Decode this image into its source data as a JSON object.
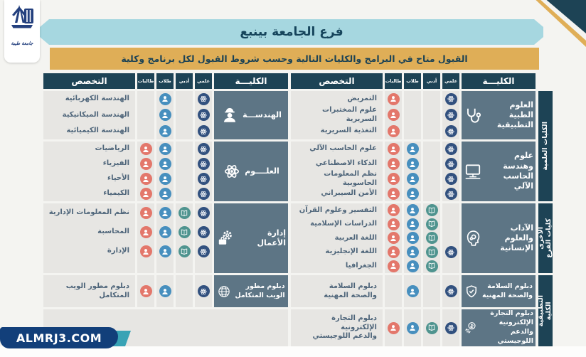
{
  "page": {
    "title": "فرع الجامعة بينبع",
    "subtitle": "القبول متاح في البرامج والكليات التالية وحسب شروط القبول لكل برنامج وكلية",
    "watermark": "ALMRJ3.COM",
    "logo_text": "جامعة طيبة"
  },
  "colors": {
    "header_navy": "#1d4355",
    "college_slate": "#5d7585",
    "cell_gray": "#e7e6e3",
    "banner_blue": "#a6d7e0",
    "banner_gold": "#dfae57",
    "sci": "#32517f",
    "lit": "#4f948f",
    "male": "#478fbe",
    "female": "#e3776b",
    "badge_blue": "#123f7a"
  },
  "header": {
    "college": "الكليـــة",
    "sci": "علمي",
    "lit": "أدبي",
    "male": "طلاب",
    "female": "طالبات",
    "spec": "التخصص"
  },
  "sidebar": [
    {
      "label": "الكليات العلمية"
    },
    {
      "label": "كليات الفرع\nالأخرى"
    },
    {
      "label": "الكلية\nالتطبيقية"
    }
  ],
  "halves": {
    "right": {
      "colleges": [
        {
          "name": "العلوم الطبية\nالتطبيقية",
          "icon": "stethoscope",
          "specs": [
            {
              "name": "التمريض",
              "tracks": [
                "sci",
                "female"
              ]
            },
            {
              "name": "علوم المختبرات السريرية",
              "tracks": [
                "sci",
                "female"
              ]
            },
            {
              "name": "التغذية السريرية",
              "tracks": [
                "sci",
                "female"
              ]
            }
          ]
        },
        {
          "name": "علوم وهندسة\nالحاسب الآلي",
          "icon": "computer",
          "specs": [
            {
              "name": "علوم الحاسب الآلي",
              "tracks": [
                "sci",
                "male",
                "female"
              ]
            },
            {
              "name": "الذكاء الاصطناعي",
              "tracks": [
                "sci",
                "male",
                "female"
              ]
            },
            {
              "name": "نظم المعلومات الحاسوبية",
              "tracks": [
                "sci",
                "male",
                "female"
              ]
            },
            {
              "name": "الأمن السيبراني",
              "tracks": [
                "sci",
                "male",
                "female"
              ]
            }
          ]
        },
        {
          "name": "الآداب والعلوم\nالإنسانية",
          "icon": "head",
          "specs": [
            {
              "name": "التفسير وعلوم القرآن",
              "tracks": [
                "lit",
                "male",
                "female"
              ]
            },
            {
              "name": "الدراسات الإسلامية",
              "tracks": [
                "lit",
                "male",
                "female"
              ]
            },
            {
              "name": "اللغة العربية",
              "tracks": [
                "lit",
                "male",
                "female"
              ]
            },
            {
              "name": "اللغة الإنجليزية",
              "tracks": [
                "sci",
                "lit",
                "male",
                "female"
              ]
            },
            {
              "name": "الجغرافيا",
              "tracks": [
                "lit",
                "male",
                "female"
              ]
            }
          ]
        },
        {
          "name": "دبلوم السلامة\nوالصحة المهنية",
          "icon": "shield",
          "specs": [
            {
              "name": "دبلوم السلامة\nوالصحة المهنية",
              "tracks": [
                "sci",
                "male"
              ]
            }
          ]
        },
        {
          "name": "دبلوم التجارة\nالإلكترونية والدعم\nاللوجيستي",
          "icon": "money",
          "specs": [
            {
              "name": "دبلوم التجارة الإلكترونية\nوالدعم اللوجيستي",
              "tracks": [
                "sci",
                "lit",
                "male",
                "female"
              ]
            }
          ]
        }
      ]
    },
    "left": {
      "colleges": [
        {
          "name": "الهندســـة",
          "icon": "engineer",
          "specs": [
            {
              "name": "الهندسة الكهربائية",
              "tracks": [
                "sci",
                "male"
              ]
            },
            {
              "name": "الهندسة الميكانيكية",
              "tracks": [
                "sci",
                "male"
              ]
            },
            {
              "name": "الهندسة الكيميائية",
              "tracks": [
                "sci",
                "male"
              ]
            }
          ]
        },
        {
          "name": "العلــــوم",
          "icon": "atom",
          "specs": [
            {
              "name": "الرياضيات",
              "tracks": [
                "sci",
                "male",
                "female"
              ]
            },
            {
              "name": "الفيزياء",
              "tracks": [
                "sci",
                "male",
                "female"
              ]
            },
            {
              "name": "الأحياء",
              "tracks": [
                "sci",
                "male",
                "female"
              ]
            },
            {
              "name": "الكيمياء",
              "tracks": [
                "sci",
                "male",
                "female"
              ]
            }
          ]
        },
        {
          "name": "إدارة الأعمال",
          "icon": "gear",
          "specs": [
            {
              "name": "نظم المعلومات الإدارية",
              "tracks": [
                "sci",
                "lit",
                "male",
                "female"
              ]
            },
            {
              "name": "المحاسبة",
              "tracks": [
                "sci",
                "lit",
                "male",
                "female"
              ]
            },
            {
              "name": "الإدارة",
              "tracks": [
                "sci",
                "lit",
                "male",
                "female"
              ]
            }
          ]
        },
        {
          "name": "دبلوم مطور\nالويب المتكامل",
          "icon": "globe",
          "specs": [
            {
              "name": "دبلوم مطور الويب\nالمتكامل",
              "tracks": [
                "sci",
                "male",
                "female"
              ]
            }
          ]
        },
        {
          "empty": true
        }
      ]
    }
  }
}
